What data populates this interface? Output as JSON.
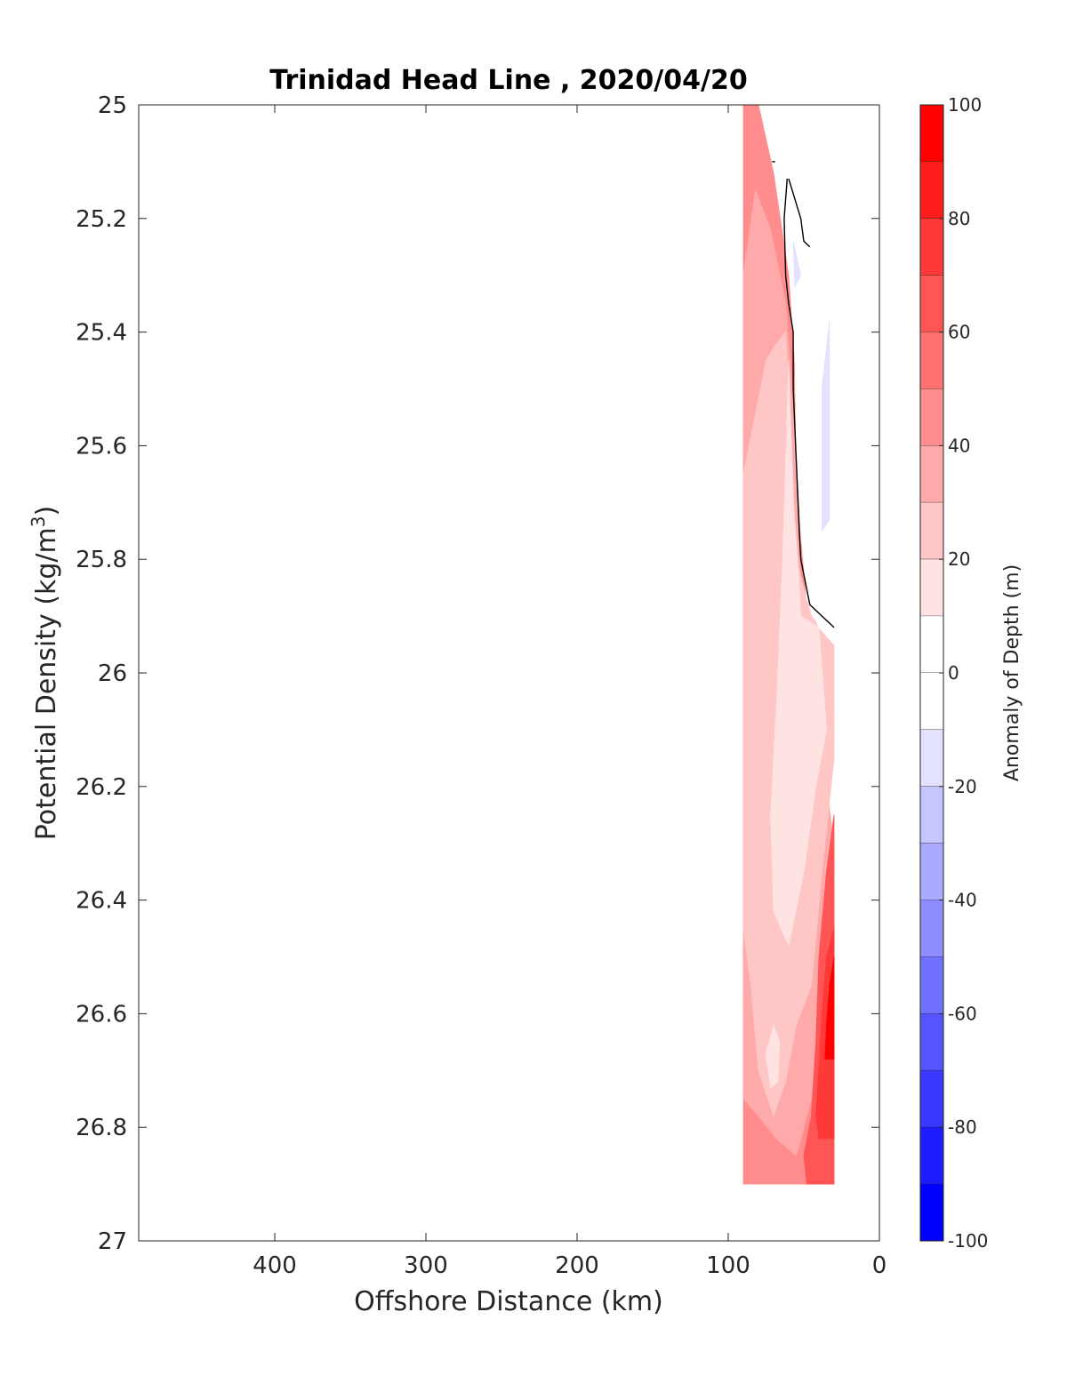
{
  "chart_data": {
    "type": "contourf",
    "title": "Trinidad Head Line , 2020/04/20",
    "xlabel": "Offshore Distance (km)",
    "ylabel": "Potential Density (kg/m",
    "ylabel_sup": "3",
    "ylabel_close": ")",
    "colorbar_label": "Anomaly of Depth (m)",
    "xlim": [
      490,
      0
    ],
    "x_reversed": true,
    "ylim": [
      25,
      27
    ],
    "y_reversed": true,
    "x_ticks": [
      400,
      300,
      200,
      100,
      0
    ],
    "y_ticks": [
      25,
      25.2,
      25.4,
      25.6,
      25.8,
      26,
      26.2,
      26.4,
      26.6,
      26.8,
      27
    ],
    "y_tick_labels": [
      "25",
      "25.2",
      "25.4",
      "25.6",
      "25.8",
      "26",
      "26.2",
      "26.4",
      "26.6",
      "26.8",
      "27"
    ],
    "colorbar_ticks": [
      100,
      80,
      60,
      40,
      20,
      0,
      -20,
      -40,
      -60,
      -80,
      -100
    ],
    "colorbar_levels": [
      {
        "min": 90,
        "max": 100,
        "color": "#ff0000"
      },
      {
        "min": 80,
        "max": 90,
        "color": "#ff1c1c"
      },
      {
        "min": 70,
        "max": 80,
        "color": "#ff3838"
      },
      {
        "min": 60,
        "max": 70,
        "color": "#ff5555"
      },
      {
        "min": 50,
        "max": 60,
        "color": "#ff7171"
      },
      {
        "min": 40,
        "max": 50,
        "color": "#ff8d8d"
      },
      {
        "min": 30,
        "max": 40,
        "color": "#ffaaaa"
      },
      {
        "min": 20,
        "max": 30,
        "color": "#ffc6c6"
      },
      {
        "min": 10,
        "max": 20,
        "color": "#ffe2e2"
      },
      {
        "min": 0,
        "max": 10,
        "color": "#ffffff"
      },
      {
        "min": -10,
        "max": 0,
        "color": "#ffffff"
      },
      {
        "min": -20,
        "max": -10,
        "color": "#e2e2ff"
      },
      {
        "min": -30,
        "max": -20,
        "color": "#c6c6ff"
      },
      {
        "min": -40,
        "max": -30,
        "color": "#aaaaff"
      },
      {
        "min": -50,
        "max": -40,
        "color": "#8d8dff"
      },
      {
        "min": -60,
        "max": -50,
        "color": "#7171ff"
      },
      {
        "min": -70,
        "max": -60,
        "color": "#5555ff"
      },
      {
        "min": -80,
        "max": -70,
        "color": "#3838ff"
      },
      {
        "min": -90,
        "max": -80,
        "color": "#1c1cff"
      },
      {
        "min": -100,
        "max": -90,
        "color": "#0000ff"
      }
    ],
    "regions": [
      {
        "level": 40,
        "color": "#ff8d8d",
        "points": [
          [
            90,
            25
          ],
          [
            80,
            25
          ],
          [
            70,
            25.12
          ],
          [
            60,
            25.3
          ],
          [
            55,
            25.5
          ],
          [
            50,
            25.8
          ],
          [
            45,
            26
          ],
          [
            40,
            26.2
          ],
          [
            30,
            26.4
          ],
          [
            30,
            26.9
          ],
          [
            50,
            26.9
          ],
          [
            90,
            26.9
          ]
        ]
      },
      {
        "level": 30,
        "color": "#ffaaaa",
        "points": [
          [
            90,
            25.3
          ],
          [
            82,
            25.15
          ],
          [
            72,
            25.22
          ],
          [
            62,
            25.35
          ],
          [
            55,
            25.6
          ],
          [
            52,
            25.85
          ],
          [
            45,
            26.05
          ],
          [
            35,
            26.2
          ],
          [
            30,
            26.3
          ],
          [
            30,
            26.45
          ],
          [
            40,
            26.55
          ],
          [
            45,
            26.75
          ],
          [
            55,
            26.85
          ],
          [
            68,
            26.82
          ],
          [
            80,
            26.78
          ],
          [
            90,
            26.75
          ]
        ]
      },
      {
        "level": 20,
        "color": "#ffc6c6",
        "points": [
          [
            90,
            25.65
          ],
          [
            75,
            25.45
          ],
          [
            68,
            25.42
          ],
          [
            62,
            25.4
          ],
          [
            58,
            25.6
          ],
          [
            55,
            25.8
          ],
          [
            45,
            25.9
          ],
          [
            30,
            25.95
          ],
          [
            30,
            26.15
          ],
          [
            38,
            26.35
          ],
          [
            45,
            26.55
          ],
          [
            55,
            26.62
          ],
          [
            62,
            26.72
          ],
          [
            70,
            26.78
          ],
          [
            80,
            26.7
          ],
          [
            85,
            26.55
          ],
          [
            90,
            26.45
          ]
        ]
      },
      {
        "level": 10,
        "color": "#ffe2e2",
        "points": [
          [
            60,
            25.45
          ],
          [
            57,
            25.7
          ],
          [
            54,
            25.8
          ],
          [
            52,
            25.9
          ],
          [
            40,
            25.92
          ],
          [
            35,
            26.1
          ],
          [
            42,
            26.2
          ],
          [
            50,
            26.35
          ],
          [
            60,
            26.48
          ],
          [
            70,
            26.42
          ],
          [
            72,
            26.25
          ],
          [
            68,
            26.05
          ],
          [
            64,
            25.8
          ]
        ]
      },
      {
        "level": 10,
        "color": "#ffe2e2",
        "points": [
          [
            75,
            26.67
          ],
          [
            70,
            26.62
          ],
          [
            66,
            26.65
          ],
          [
            67,
            26.72
          ],
          [
            72,
            26.73
          ]
        ]
      },
      {
        "level": 0,
        "color": "#ffffff",
        "points": [
          [
            70,
            25.1
          ],
          [
            62,
            25.12
          ],
          [
            58,
            25.25
          ],
          [
            56,
            25.4
          ],
          [
            55,
            25.6
          ],
          [
            52,
            25.75
          ],
          [
            48,
            25.87
          ],
          [
            40,
            25.92
          ],
          [
            30,
            25.95
          ],
          [
            30,
            25.0
          ],
          [
            68,
            25.0
          ]
        ]
      },
      {
        "level": 60,
        "color": "#ff5555",
        "points": [
          [
            30,
            26.25
          ],
          [
            35,
            26.35
          ],
          [
            40,
            26.5
          ],
          [
            42,
            26.65
          ],
          [
            45,
            26.78
          ],
          [
            50,
            26.85
          ],
          [
            48,
            26.9
          ],
          [
            30,
            26.9
          ]
        ]
      },
      {
        "level": 80,
        "color": "#ff3838",
        "points": [
          [
            30,
            26.45
          ],
          [
            35,
            26.5
          ],
          [
            38,
            26.6
          ],
          [
            40,
            26.7
          ],
          [
            42,
            26.78
          ],
          [
            40,
            26.82
          ],
          [
            30,
            26.82
          ]
        ]
      },
      {
        "level": 90,
        "color": "#ff0000",
        "points": [
          [
            30,
            26.5
          ],
          [
            33,
            26.55
          ],
          [
            35,
            26.62
          ],
          [
            36,
            26.68
          ],
          [
            30,
            26.68
          ]
        ]
      },
      {
        "level": -10,
        "color": "#e2e2ff",
        "points": [
          [
            33,
            25.38
          ],
          [
            38,
            25.5
          ],
          [
            38,
            25.75
          ],
          [
            33,
            25.73
          ]
        ]
      },
      {
        "level": -10,
        "color": "#e2e2ff",
        "points": [
          [
            57,
            25.24
          ],
          [
            52,
            25.3
          ],
          [
            56,
            25.32
          ]
        ]
      }
    ],
    "zero_contour": [
      [
        [
          61,
          25.13
        ],
        [
          63,
          25.2
        ],
        [
          62,
          25.3
        ],
        [
          60,
          25.35
        ],
        [
          57,
          25.4
        ],
        [
          57,
          25.5
        ],
        [
          53,
          25.75
        ],
        [
          52,
          25.8
        ],
        [
          46,
          25.88
        ],
        [
          30,
          25.92
        ]
      ],
      [
        [
          69,
          25.1
        ],
        [
          71,
          25.1
        ]
      ],
      [
        [
          60,
          25.13
        ],
        [
          52,
          25.2
        ],
        [
          50,
          25.24
        ],
        [
          46,
          25.25
        ]
      ]
    ]
  }
}
